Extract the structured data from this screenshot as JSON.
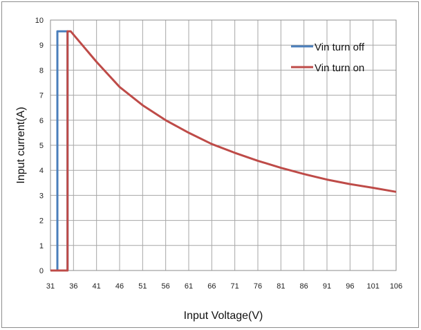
{
  "chart_data": {
    "type": "line",
    "title": "",
    "xlabel": "Input Voltage(V)",
    "ylabel": "Input current(A)",
    "xlim": [
      31,
      106
    ],
    "ylim": [
      0,
      10
    ],
    "x_ticks": [
      31,
      36,
      41,
      46,
      51,
      56,
      61,
      66,
      71,
      76,
      81,
      86,
      91,
      96,
      101,
      106
    ],
    "y_ticks": [
      0,
      1,
      2,
      3,
      4,
      5,
      6,
      7,
      8,
      9,
      10
    ],
    "grid": true,
    "legend_position": "top-right",
    "series": [
      {
        "name": "Vin turn off",
        "color": "#4a7ebb",
        "points": [
          [
            31,
            0
          ],
          [
            32.5,
            0
          ],
          [
            32.5,
            9.55
          ],
          [
            34.7,
            9.55
          ],
          [
            34.7,
            0
          ],
          [
            32.5,
            0
          ]
        ]
      },
      {
        "name": "Vin turn on",
        "color": "#be4b48",
        "points": [
          [
            31,
            0
          ],
          [
            34.7,
            0
          ],
          [
            34.7,
            9.55
          ],
          [
            35.4,
            9.55
          ],
          [
            41,
            8.33
          ],
          [
            46,
            7.33
          ],
          [
            51,
            6.6
          ],
          [
            56,
            6.0
          ],
          [
            61,
            5.5
          ],
          [
            66,
            5.05
          ],
          [
            71,
            4.7
          ],
          [
            76,
            4.38
          ],
          [
            81,
            4.1
          ],
          [
            86,
            3.85
          ],
          [
            91,
            3.63
          ],
          [
            96,
            3.45
          ],
          [
            101,
            3.3
          ],
          [
            106,
            3.14
          ]
        ]
      }
    ]
  }
}
